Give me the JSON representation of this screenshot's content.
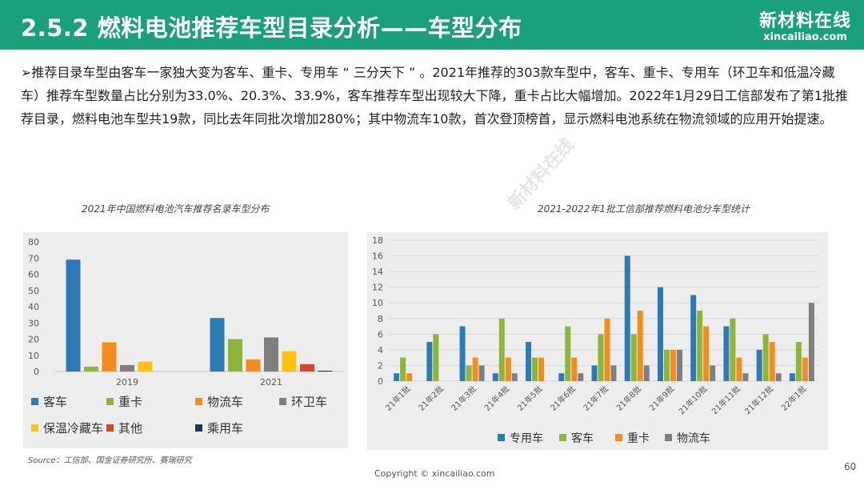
{
  "header": {
    "title": "2.5.2 燃料电池推荐车型目录分析——车型分布",
    "logo_cn": "新材料在线",
    "logo_en": "xincailiao.com"
  },
  "bullet_text": "➢推荐目录车型由客车一家独大变为客车、重卡、专用车 “ 三分天下 ” 。2021年推荐的303款车型中，客车、重卡、专用车（环卫车和低温冷藏车）推荐车型数量占比分别为33.0%、20.3%、33.9%，客车推荐车型出现较大下降，重卡占比大幅增加。2022年1月29日工信部发布了第1批推荐目录，燃料电池车型共19款，同比去年同批次增加280%；其中物流车10款，首次登顶榜首，显示燃料电池系统在物流领域的应用开始提速。",
  "chart_data": [
    {
      "type": "bar",
      "title": "2021年中国燃料电池汽车推荐名录车型分布",
      "categories": [
        "2019",
        "2021"
      ],
      "ylim": [
        0,
        80
      ],
      "yticks": [
        0,
        10,
        20,
        30,
        40,
        50,
        60,
        70,
        80
      ],
      "legend_position": "bottom",
      "grid": false,
      "series": [
        {
          "name": "客车",
          "color": "#2e7ab5",
          "values": [
            69,
            33
          ]
        },
        {
          "name": "重卡",
          "color": "#8db53a",
          "values": [
            3,
            20
          ]
        },
        {
          "name": "物流车",
          "color": "#f28c1a",
          "values": [
            18,
            7.5
          ]
        },
        {
          "name": "环卫车",
          "color": "#7f7f7f",
          "values": [
            4,
            21
          ]
        },
        {
          "name": "保温冷藏车",
          "color": "#ffc20e",
          "values": [
            6,
            12.5
          ]
        },
        {
          "name": "其他",
          "color": "#d8452b",
          "values": [
            0,
            4.5
          ]
        },
        {
          "name": "乘用车",
          "color": "#1f3a4d",
          "values": [
            0,
            0.5
          ]
        }
      ]
    },
    {
      "type": "bar",
      "title": "2021-2022年1批工信部推荐燃料电池分车型统计",
      "categories": [
        "21年1批",
        "21年2批",
        "21年3批",
        "21年4批",
        "21年5批",
        "21年6批",
        "21年7批",
        "21年8批",
        "21年9批",
        "21年10批",
        "21年11批",
        "21年12批",
        "22年1批"
      ],
      "ylim": [
        0,
        18
      ],
      "yticks": [
        0,
        2,
        4,
        6,
        8,
        10,
        12,
        14,
        16,
        18
      ],
      "legend_position": "bottom",
      "grid": true,
      "series": [
        {
          "name": "专用车",
          "color": "#2e7ab5",
          "values": [
            1,
            5,
            7,
            1,
            5,
            1,
            2,
            16,
            12,
            11,
            7,
            4,
            1
          ]
        },
        {
          "name": "客车",
          "color": "#8db53a",
          "values": [
            3,
            6,
            2,
            8,
            3,
            7,
            6,
            6,
            4,
            9,
            8,
            6,
            5
          ]
        },
        {
          "name": "重卡",
          "color": "#f28c1a",
          "values": [
            1,
            0,
            3,
            3,
            3,
            3,
            8,
            9,
            4,
            7,
            3,
            5,
            3
          ]
        },
        {
          "name": "物流车",
          "color": "#7f7f7f",
          "values": [
            0,
            0,
            2,
            1,
            0,
            1,
            2,
            2,
            4,
            2,
            1,
            1,
            10
          ]
        }
      ]
    }
  ],
  "footer": {
    "source": "Source：工信部、国金证券研究所、赛瑞研究",
    "copyright": "Copyright © xincailiao.com",
    "page_number": "60"
  }
}
